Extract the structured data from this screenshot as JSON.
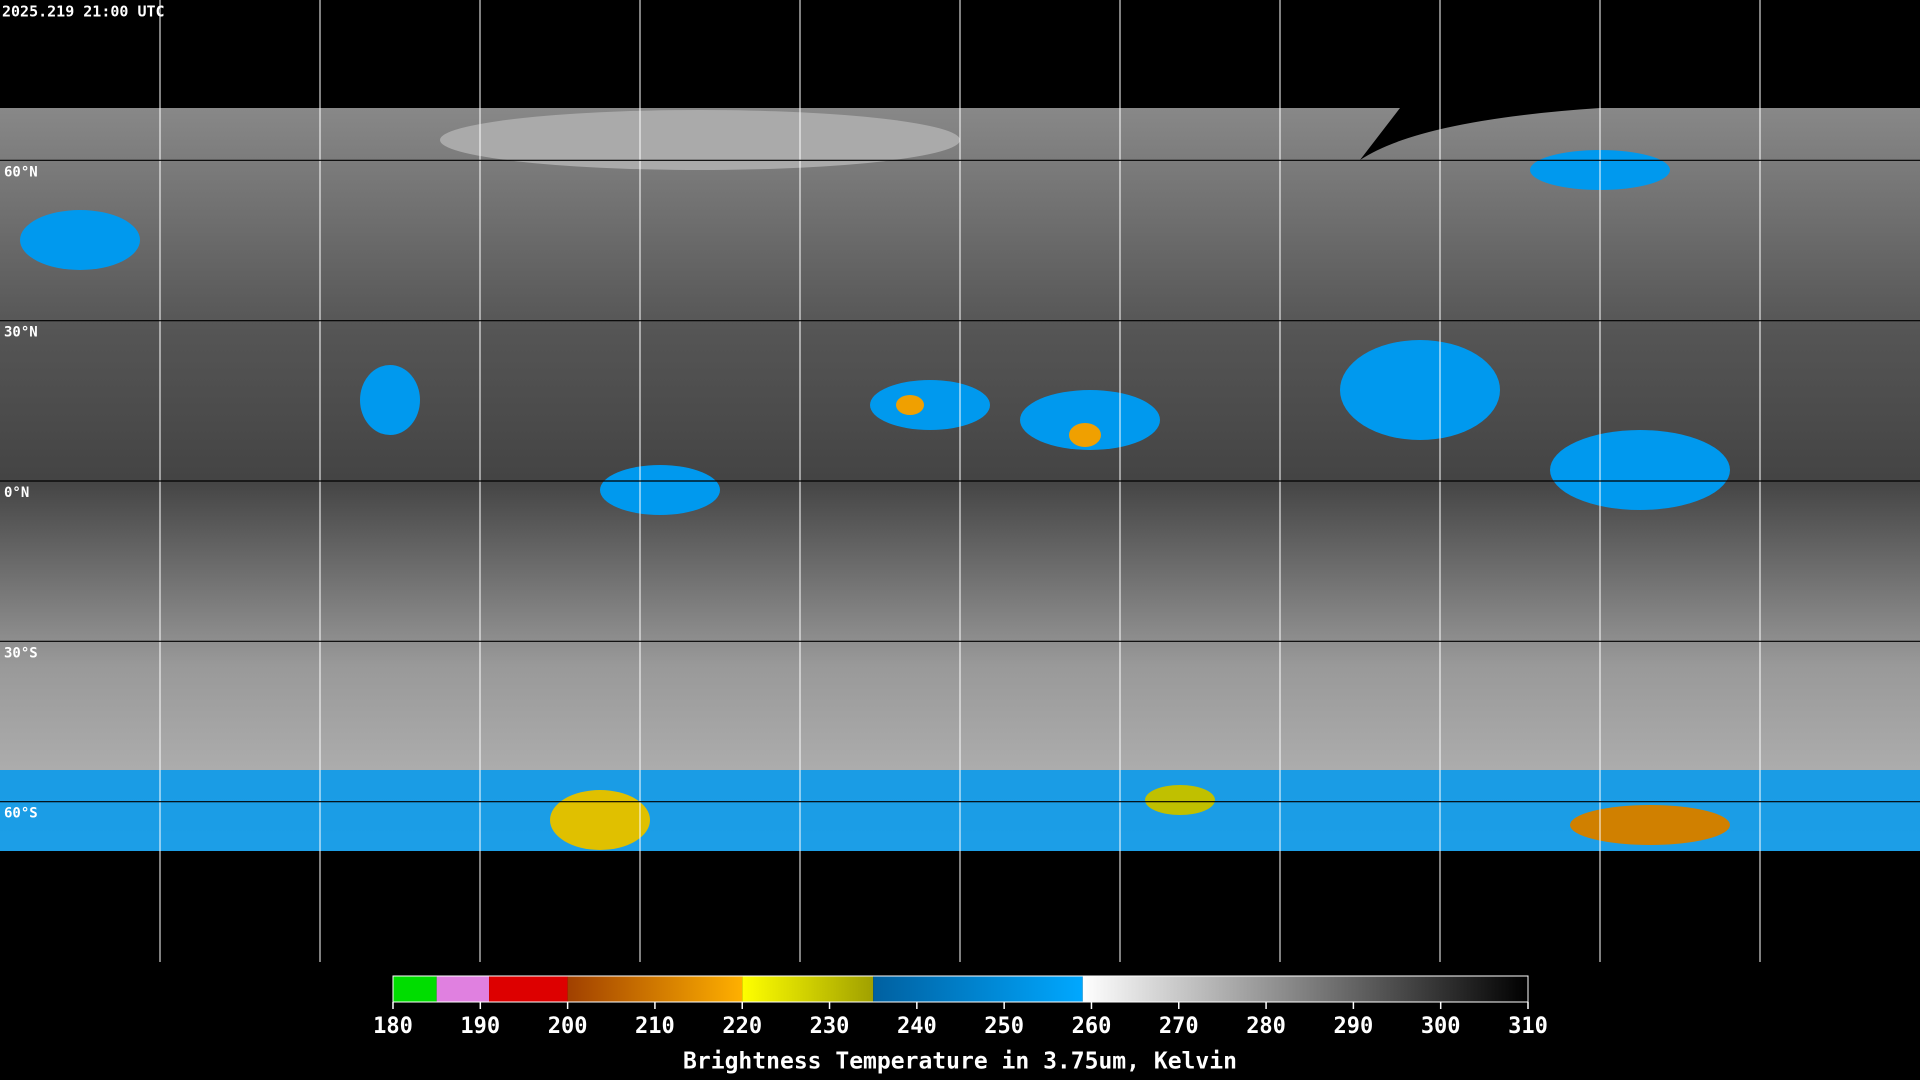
{
  "timestamp": "2025.219 21:00 UTC",
  "lat_labels": [
    {
      "value": 60,
      "label": "60°N"
    },
    {
      "value": 30,
      "label": "30°N"
    },
    {
      "value": 0,
      "label": "0°N"
    },
    {
      "value": -30,
      "label": "30°S"
    },
    {
      "value": -60,
      "label": "60°S"
    }
  ],
  "colorbar": {
    "title": "Brightness Temperature in 3.75um, Kelvin",
    "range": [
      180,
      310
    ],
    "ticks": [
      180,
      190,
      200,
      210,
      220,
      230,
      240,
      250,
      260,
      270,
      280,
      290,
      300,
      310
    ],
    "segments": [
      {
        "from": 180,
        "to": 185,
        "colors": [
          "#00dd00",
          "#00dd00"
        ]
      },
      {
        "from": 185,
        "to": 191,
        "colors": [
          "#e080e0",
          "#e080e0"
        ]
      },
      {
        "from": 191,
        "to": 200,
        "colors": [
          "#dd0000",
          "#dd0000"
        ]
      },
      {
        "from": 200,
        "to": 220,
        "colors": [
          "#a04000",
          "#ffb000"
        ]
      },
      {
        "from": 220,
        "to": 235,
        "colors": [
          "#ffff00",
          "#a0a000"
        ]
      },
      {
        "from": 235,
        "to": 259,
        "colors": [
          "#0060a0",
          "#00a8ff"
        ]
      },
      {
        "from": 259,
        "to": 310,
        "colors": [
          "#ffffff",
          "#000000"
        ]
      }
    ]
  }
}
